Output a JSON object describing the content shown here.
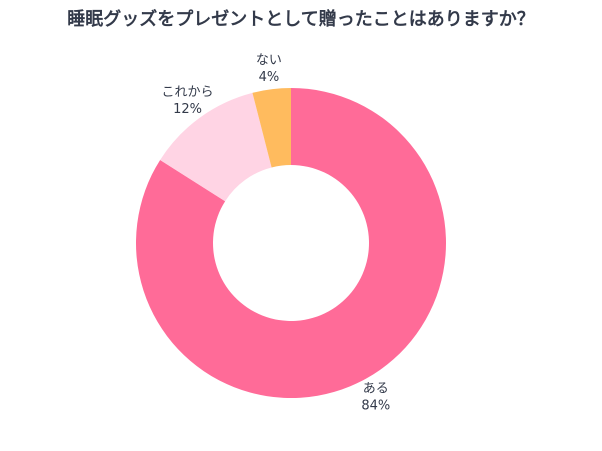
{
  "chart_data": {
    "type": "pie",
    "donut": true,
    "title": "睡眠グッズをプレゼントとして贈ったことはありますか？",
    "categories": [
      "ある",
      "これから",
      "ない"
    ],
    "values": [
      84,
      12,
      4
    ],
    "value_labels": [
      "84%",
      "12%",
      "4%"
    ],
    "colors": [
      "#ff6b98",
      "#ffd4e4",
      "#ffbb5e"
    ]
  }
}
